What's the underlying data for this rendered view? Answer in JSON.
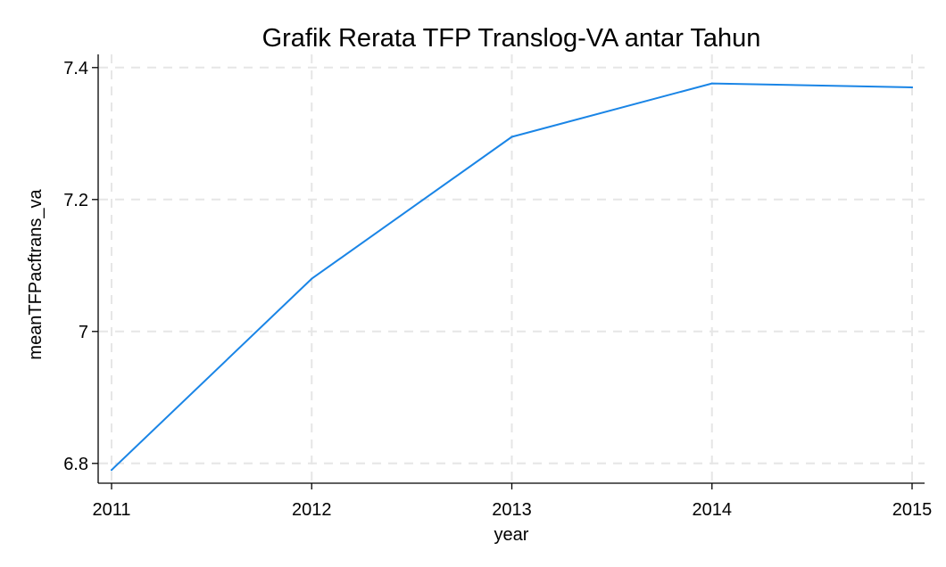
{
  "chart_data": {
    "type": "line",
    "title": "Grafik Rerata TFP Translog-VA antar Tahun",
    "xlabel": "year",
    "ylabel": "meanTFPacftrans_va",
    "x": [
      2011,
      2012,
      2013,
      2014,
      2015
    ],
    "series": [
      {
        "values": [
          6.79,
          7.08,
          7.295,
          7.376,
          7.37
        ]
      }
    ],
    "xlim": [
      2011,
      2015
    ],
    "ylim": [
      6.77,
      7.42
    ],
    "x_ticks": [
      2011,
      2012,
      2013,
      2014,
      2015
    ],
    "x_tick_labels": [
      "2011",
      "2012",
      "2013",
      "2014",
      "2015"
    ],
    "y_ticks": [
      6.8,
      7.0,
      7.2,
      7.4
    ],
    "y_tick_labels": [
      "6.8",
      "7",
      "7.2",
      "7.4"
    ],
    "grid": true,
    "line_color": "#1a85e6"
  }
}
